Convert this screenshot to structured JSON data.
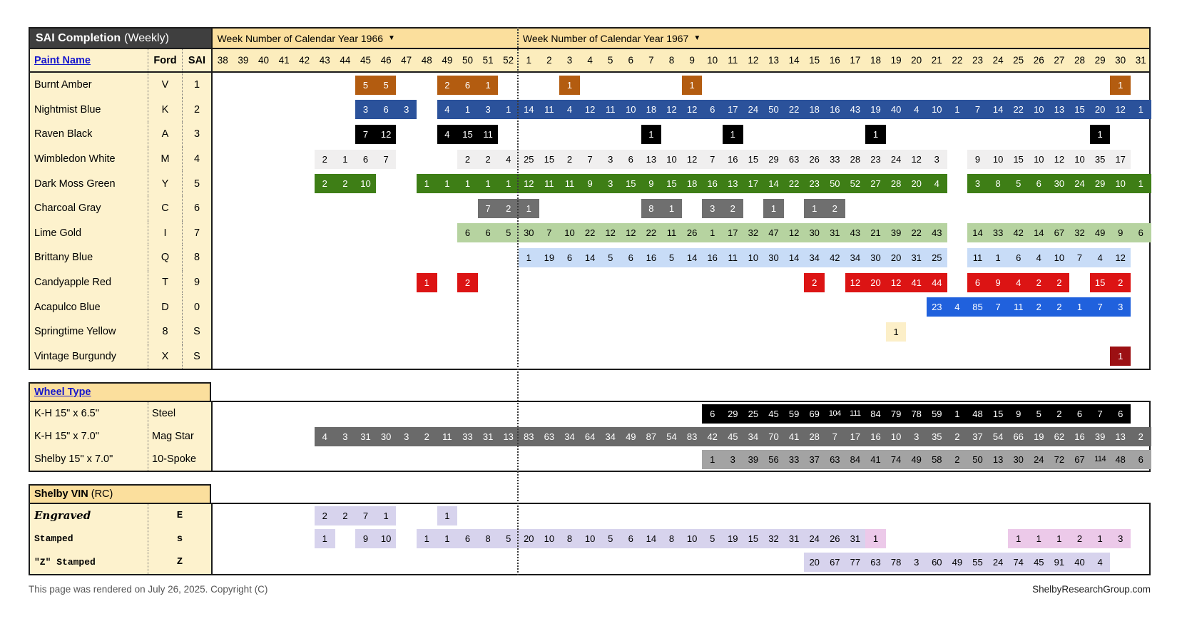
{
  "title": {
    "main": "SAI Completion",
    "suffix": "(Weekly)"
  },
  "year_headers": [
    {
      "label": "Week Number of Calendar Year 1966",
      "arrow": "▼",
      "weeks": 15
    },
    {
      "label": "Week Number of Calendar Year 1967",
      "arrow": "▼",
      "weeks": 31
    }
  ],
  "week_numbers": [
    "38",
    "39",
    "40",
    "41",
    "42",
    "43",
    "44",
    "45",
    "46",
    "47",
    "48",
    "49",
    "50",
    "51",
    "52",
    "1",
    "2",
    "3",
    "4",
    "5",
    "6",
    "7",
    "8",
    "9",
    "10",
    "11",
    "12",
    "13",
    "14",
    "15",
    "16",
    "17",
    "18",
    "19",
    "20",
    "21",
    "22",
    "23",
    "24",
    "25",
    "26",
    "27",
    "28",
    "29",
    "30",
    "31"
  ],
  "paint": {
    "headers": {
      "name": "Paint Name",
      "ford": "Ford",
      "sai": "SAI"
    },
    "rows": [
      {
        "name": "Burnt Amber",
        "ford": "V",
        "sai": "1",
        "color": "#b35c10",
        "text": "#ffffff",
        "segments": [
          {
            "s": 7,
            "v": [
              5,
              5
            ]
          },
          {
            "s": 11,
            "v": [
              2,
              6,
              1
            ]
          },
          {
            "s": 17,
            "v": [
              1
            ]
          },
          {
            "s": 23,
            "v": [
              1
            ]
          },
          {
            "s": 44,
            "v": [
              1
            ]
          }
        ]
      },
      {
        "name": "Nightmist Blue",
        "ford": "K",
        "sai": "2",
        "color": "#2b529b",
        "text": "#ffffff",
        "segments": [
          {
            "s": 7,
            "v": [
              3,
              6,
              3
            ]
          },
          {
            "s": 11,
            "v": [
              4,
              1,
              3,
              1
            ]
          },
          {
            "s": 15,
            "v": [
              14,
              11,
              4,
              12,
              11,
              10,
              18,
              12,
              12,
              6,
              17,
              24,
              50,
              22,
              18,
              16,
              43,
              19,
              40,
              4,
              10,
              1,
              7,
              14,
              22,
              10,
              13,
              15,
              20,
              12,
              1
            ]
          }
        ]
      },
      {
        "name": "Raven Black",
        "ford": "A",
        "sai": "3",
        "color": "#000000",
        "text": "#ffffff",
        "segments": [
          {
            "s": 7,
            "v": [
              7,
              12
            ]
          },
          {
            "s": 11,
            "v": [
              4,
              15,
              11
            ]
          },
          {
            "s": 21,
            "v": [
              1
            ]
          },
          {
            "s": 25,
            "v": [
              1
            ]
          },
          {
            "s": 32,
            "v": [
              1
            ]
          },
          {
            "s": 43,
            "v": [
              1
            ]
          }
        ]
      },
      {
        "name": "Wimbledon White",
        "ford": "M",
        "sai": "4",
        "color": "#f0efef",
        "text": "#000000",
        "segments": [
          {
            "s": 5,
            "v": [
              2,
              1,
              6,
              7
            ]
          },
          {
            "s": 12,
            "v": [
              2,
              2,
              4
            ]
          },
          {
            "s": 15,
            "v": [
              25,
              15,
              2,
              7,
              3,
              6,
              13,
              10,
              12,
              7,
              16,
              15,
              29,
              63,
              26,
              33,
              28,
              23,
              24,
              12,
              3
            ]
          },
          {
            "s": 37,
            "v": [
              9,
              10,
              15,
              10,
              12,
              10,
              35,
              17
            ]
          }
        ]
      },
      {
        "name": "Dark Moss Green",
        "ford": "Y",
        "sai": "5",
        "color": "#3e7e16",
        "text": "#ffffff",
        "segments": [
          {
            "s": 5,
            "v": [
              2,
              2,
              10
            ]
          },
          {
            "s": 10,
            "v": [
              1,
              1,
              1,
              1,
              1
            ]
          },
          {
            "s": 15,
            "v": [
              12,
              11,
              11,
              9,
              3,
              15,
              9,
              15,
              18,
              16,
              13,
              17,
              14,
              22,
              23,
              50,
              52,
              27,
              28,
              20,
              4
            ]
          },
          {
            "s": 37,
            "v": [
              3,
              8,
              5,
              6,
              30,
              24,
              29,
              10,
              1
            ]
          }
        ]
      },
      {
        "name": "Charcoal Gray",
        "ford": "C",
        "sai": "6",
        "color": "#6f6f6f",
        "text": "#ffffff",
        "segments": [
          {
            "s": 13,
            "v": [
              7,
              2
            ]
          },
          {
            "s": 15,
            "v": [
              1
            ]
          },
          {
            "s": 21,
            "v": [
              8,
              1
            ]
          },
          {
            "s": 24,
            "v": [
              3,
              2
            ]
          },
          {
            "s": 27,
            "v": [
              1
            ]
          },
          {
            "s": 29,
            "v": [
              1,
              2
            ]
          }
        ]
      },
      {
        "name": "Lime Gold",
        "ford": "I",
        "sai": "7",
        "color": "#b6d3a0",
        "text": "#000000",
        "segments": [
          {
            "s": 12,
            "v": [
              6,
              6,
              5
            ]
          },
          {
            "s": 15,
            "v": [
              30,
              7,
              10,
              22,
              12,
              12,
              22,
              11,
              26,
              1,
              17,
              32,
              47,
              12,
              30,
              31,
              43,
              21,
              39,
              22,
              43
            ]
          },
          {
            "s": 37,
            "v": [
              14,
              33,
              42,
              14,
              67,
              32,
              49,
              9,
              6
            ]
          }
        ]
      },
      {
        "name": "Brittany Blue",
        "ford": "Q",
        "sai": "8",
        "color": "#c8dcf7",
        "text": "#000000",
        "segments": [
          {
            "s": 15,
            "v": [
              1,
              19,
              6,
              14,
              5,
              6,
              16,
              5,
              14,
              16,
              11,
              10,
              30,
              14,
              34,
              42,
              34,
              30,
              20,
              31,
              25
            ]
          },
          {
            "s": 37,
            "v": [
              11,
              1,
              6,
              4,
              10,
              7,
              4,
              12
            ]
          }
        ]
      },
      {
        "name": "Candyapple Red",
        "ford": "T",
        "sai": "9",
        "color": "#dc1414",
        "text": "#ffffff",
        "segments": [
          {
            "s": 10,
            "v": [
              1
            ]
          },
          {
            "s": 12,
            "v": [
              2
            ]
          },
          {
            "s": 29,
            "v": [
              2
            ]
          },
          {
            "s": 31,
            "v": [
              12,
              20,
              12,
              41,
              44
            ]
          },
          {
            "s": 37,
            "v": [
              6,
              9,
              4,
              2,
              2
            ]
          },
          {
            "s": 43,
            "v": [
              15,
              2
            ]
          }
        ]
      },
      {
        "name": "Acapulco Blue",
        "ford": "D",
        "sai": "0",
        "color": "#2061dd",
        "text": "#ffffff",
        "segments": [
          {
            "s": 35,
            "v": [
              23,
              4,
              85,
              7,
              11,
              2,
              2,
              1,
              7,
              3
            ]
          }
        ]
      },
      {
        "name": "Springtime Yellow",
        "ford": "8",
        "sai": "S",
        "color": "#fcefc8",
        "text": "#000000",
        "segments": [
          {
            "s": 33,
            "v": [
              1
            ]
          }
        ]
      },
      {
        "name": "Vintage Burgundy",
        "ford": "X",
        "sai": "S",
        "color": "#9c1013",
        "text": "#ffffff",
        "segments": [
          {
            "s": 44,
            "v": [
              1
            ]
          }
        ]
      }
    ]
  },
  "wheels": {
    "header": "Wheel Type",
    "rows": [
      {
        "name": "K-H 15\" x 6.5\"",
        "code": "Steel",
        "color": "#000000",
        "text": "#ffffff",
        "segments": [
          {
            "s": 24,
            "v": [
              6,
              29,
              25,
              45,
              59,
              69,
              104,
              111,
              84,
              79,
              78,
              59,
              1,
              48,
              15,
              9,
              5,
              2,
              6,
              7,
              6
            ]
          }
        ]
      },
      {
        "name": "K-H 15\" x 7.0\"",
        "code": "Mag Star",
        "color": "#6a6a6a",
        "text": "#ffffff",
        "segments": [
          {
            "s": 5,
            "v": [
              4,
              3,
              31,
              30,
              3,
              2,
              11,
              33,
              31,
              13
            ]
          },
          {
            "s": 15,
            "v": [
              83,
              63,
              34,
              64,
              34,
              49,
              87,
              54,
              83,
              42,
              45,
              34,
              70,
              41,
              28,
              7,
              17,
              16,
              10,
              3,
              35,
              2,
              37,
              54,
              66,
              19,
              62,
              16,
              39,
              13,
              2
            ]
          }
        ]
      },
      {
        "name": "Shelby 15\" x 7.0\"",
        "code": "10-Spoke",
        "color": "#a3a3a3",
        "text": "#000000",
        "segments": [
          {
            "s": 24,
            "v": [
              1,
              3,
              39,
              56,
              33,
              37,
              63,
              84,
              41,
              74,
              49,
              58,
              2,
              50,
              13,
              30,
              24,
              72,
              67,
              114,
              48,
              6
            ]
          }
        ]
      }
    ]
  },
  "vin": {
    "header": "Shelby VIN",
    "header_suffix": "(RC)",
    "rows": [
      {
        "name": "Engraved",
        "code": "E",
        "style": "script",
        "color": "#d7d3ed",
        "text": "#000000",
        "segments": [
          {
            "s": 5,
            "v": [
              2,
              2,
              7,
              1
            ]
          },
          {
            "s": 11,
            "v": [
              1
            ]
          }
        ]
      },
      {
        "name": "Stamped",
        "code": "s",
        "style": "mono",
        "color": "#d7d3ed",
        "text": "#000000",
        "segments": [
          {
            "s": 5,
            "v": [
              1
            ]
          },
          {
            "s": 7,
            "v": [
              9,
              10
            ]
          },
          {
            "s": 10,
            "v": [
              1,
              1,
              6,
              8,
              5
            ]
          },
          {
            "s": 15,
            "v": [
              20,
              10,
              8,
              10,
              5,
              6,
              14,
              8,
              10,
              5,
              19,
              15,
              32,
              31,
              24,
              26,
              31
            ]
          },
          {
            "s": 32,
            "v": [
              1
            ],
            "c": "#ecc9e9"
          },
          {
            "s": 39,
            "v": [
              1,
              1,
              1,
              2,
              1,
              3
            ],
            "c": "#ecc9e9"
          }
        ]
      },
      {
        "name": "\"Z\" Stamped",
        "code": "Z",
        "style": "mono",
        "color": "#d7d3ed",
        "text": "#000000",
        "segments": [
          {
            "s": 29,
            "v": [
              20,
              67,
              77,
              63,
              78,
              3,
              60,
              49,
              55,
              24,
              74,
              45,
              91,
              40,
              4
            ]
          }
        ]
      }
    ]
  },
  "footer": {
    "left": "This page was rendered on July 26, 2025. Copyright (C)",
    "right": "ShelbyResearchGroup.com"
  },
  "colors": {
    "header_yellow": "#fbdf9d",
    "week_row_yellow": "#fcedbd",
    "label_cream": "#fdf2cd",
    "title_bar": "#3f3f3f",
    "link_blue": "#1717cc",
    "border": "#1b1b1b",
    "vin_pink": "#ecc9e9"
  }
}
